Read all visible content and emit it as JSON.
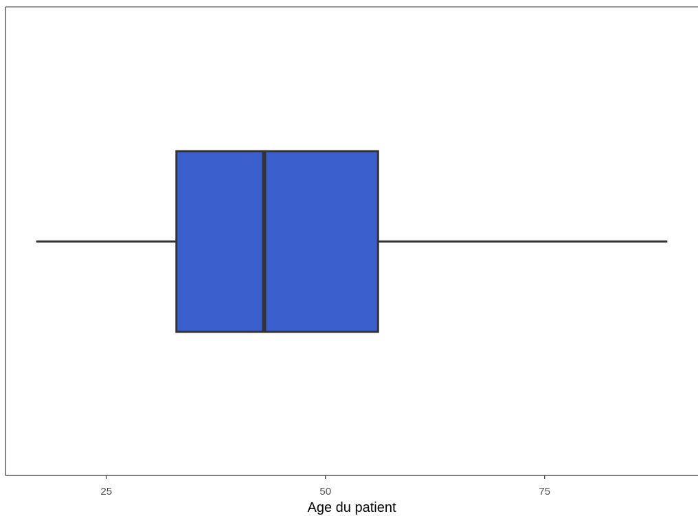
{
  "chart_data": {
    "type": "boxplot",
    "title": "",
    "xlabel": "Age du patient",
    "ylabel": "",
    "xlim": [
      13.5,
      92.5
    ],
    "x_ticks": [
      25,
      50,
      75
    ],
    "x_tick_labels": [
      "25",
      "50",
      "75"
    ],
    "grid": false,
    "legend": "none",
    "box": {
      "min": 17,
      "q1": 33,
      "median": 43,
      "q3": 56,
      "max": 89
    },
    "fill_color": "#3a5fcd",
    "line_color": "#333333"
  }
}
